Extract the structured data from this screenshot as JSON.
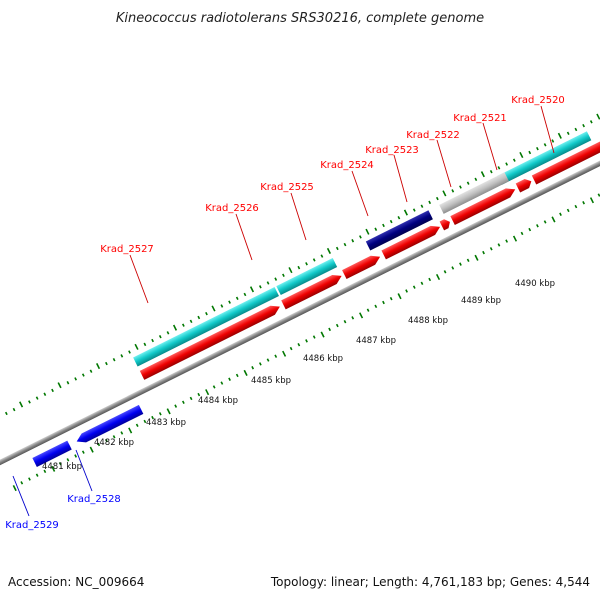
{
  "title": "Kineococcus radiotolerans SRS30216, complete genome",
  "accession": "Accession: NC_009664",
  "topology": "Topology: linear; Length: 4,761,183 bp; Genes: 4,544",
  "scale_labels": [
    "4481 kbp",
    "4482 kbp",
    "4483 kbp",
    "4484 kbp",
    "4485 kbp",
    "4486 kbp",
    "4487 kbp",
    "4488 kbp",
    "4489 kbp",
    "4490 kbp"
  ],
  "genes": [
    {
      "label": "Krad_2520",
      "strand": "forward",
      "kind": "gene",
      "color": "#ff0000"
    },
    {
      "label": "Krad_2521",
      "strand": "forward",
      "kind": "gene",
      "color": "#ff0000"
    },
    {
      "label": "Krad_2522",
      "strand": "forward",
      "kind": "gene",
      "color": "#ff0000"
    },
    {
      "label": "Krad_2523",
      "strand": "forward",
      "kind": "gene",
      "color": "#ff0000"
    },
    {
      "label": "Krad_2524",
      "strand": "forward",
      "kind": "gene",
      "color": "#ff0000"
    },
    {
      "label": "Krad_2525",
      "strand": "forward",
      "kind": "gene",
      "color": "#ff0000"
    },
    {
      "label": "Krad_2526",
      "strand": "forward",
      "kind": "gene",
      "color": "#ff0000"
    },
    {
      "label": "Krad_2527",
      "strand": "forward",
      "kind": "gene",
      "color": "#ff0000"
    },
    {
      "label": "Krad_2528",
      "strand": "reverse",
      "kind": "gene",
      "color": "#0000ff"
    },
    {
      "label": "Krad_2529",
      "strand": "reverse",
      "kind": "gene",
      "color": "#0000ff"
    }
  ],
  "colors": {
    "forward_gene": "#ff0000",
    "reverse_gene": "#0000ff",
    "cds_feature": "#00c8c8",
    "dark_feature": "#000080",
    "grey_feature": "#c0c0c0",
    "backbone": "#888888",
    "ticks": "#007700"
  }
}
